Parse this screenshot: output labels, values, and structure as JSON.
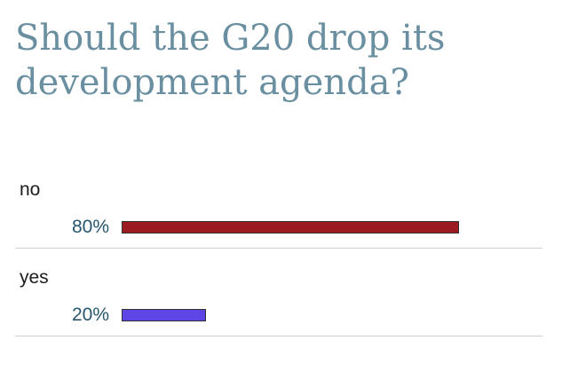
{
  "poll": {
    "title": "Should the G20 drop its development agenda?"
  },
  "chart_data": {
    "type": "bar",
    "orientation": "horizontal",
    "title": "Should the G20 drop its development agenda?",
    "categories": [
      "no",
      "yes"
    ],
    "values": [
      80,
      20
    ],
    "value_labels": [
      "80%",
      "20%"
    ],
    "colors": [
      "#9b1b21",
      "#5d45e6"
    ],
    "xlim": [
      0,
      100
    ]
  }
}
